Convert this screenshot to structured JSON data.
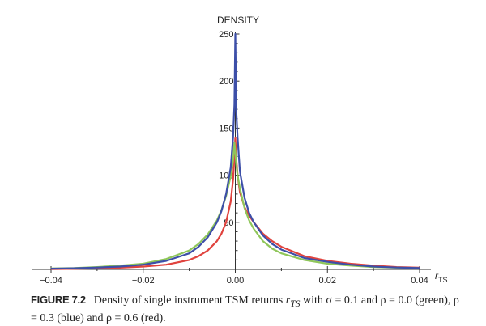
{
  "chart_data": {
    "type": "line",
    "title": "",
    "ylabel": "DENSITY",
    "xlabel_main": "r",
    "xlabel_sub": "TS",
    "xlim": [
      -0.04,
      0.04
    ],
    "ylim": [
      0,
      250
    ],
    "xticks": [
      -0.04,
      -0.02,
      0.0,
      0.02,
      0.04
    ],
    "xtick_labels": [
      "-0.04",
      "-0.02",
      "0.00",
      "0.02",
      "0.04"
    ],
    "yticks": [
      50,
      100,
      150,
      200,
      250
    ],
    "ytick_labels": [
      "50",
      "100",
      "150",
      "200",
      "250"
    ],
    "grid": false,
    "series": [
      {
        "name": "ρ = 0.0 (green)",
        "color": "#8fc65a",
        "x": [
          -0.04,
          -0.035,
          -0.03,
          -0.025,
          -0.02,
          -0.015,
          -0.01,
          -0.008,
          -0.006,
          -0.004,
          -0.003,
          -0.002,
          -0.001,
          -0.0005,
          -0.0002,
          0,
          0.0002,
          0.0005,
          0.001,
          0.002,
          0.003,
          0.004,
          0.006,
          0.008,
          0.01,
          0.015,
          0.02,
          0.025,
          0.03,
          0.035,
          0.04
        ],
        "values": [
          1,
          1.5,
          2.5,
          4,
          6,
          11,
          20,
          27,
          37,
          52,
          63,
          78,
          99,
          115,
          135,
          125,
          112,
          100,
          86,
          65,
          52,
          43,
          30,
          22,
          17,
          10,
          6,
          4,
          2.5,
          1.8,
          1.2
        ]
      },
      {
        "name": "ρ = 0.3 (blue)",
        "color": "#3d4fa8",
        "x": [
          -0.04,
          -0.035,
          -0.03,
          -0.025,
          -0.02,
          -0.015,
          -0.01,
          -0.008,
          -0.006,
          -0.004,
          -0.003,
          -0.002,
          -0.001,
          -0.0005,
          -0.0002,
          0,
          0.0002,
          0.0005,
          0.001,
          0.002,
          0.003,
          0.004,
          0.006,
          0.008,
          0.01,
          0.015,
          0.02,
          0.025,
          0.03,
          0.035,
          0.04
        ],
        "values": [
          0.8,
          1.2,
          2,
          3,
          5,
          9,
          17,
          24,
          34,
          50,
          62,
          80,
          108,
          140,
          175,
          250,
          170,
          140,
          104,
          76,
          60,
          50,
          36,
          27,
          21,
          12,
          8,
          5,
          3,
          2,
          1.5
        ]
      },
      {
        "name": "ρ = 0.6 (red)",
        "color": "#e0433e",
        "x": [
          -0.04,
          -0.035,
          -0.03,
          -0.025,
          -0.02,
          -0.015,
          -0.01,
          -0.008,
          -0.006,
          -0.004,
          -0.003,
          -0.002,
          -0.001,
          -0.0005,
          -0.0002,
          0,
          0.0002,
          0.0005,
          0.001,
          0.002,
          0.003,
          0.004,
          0.006,
          0.008,
          0.01,
          0.015,
          0.02,
          0.025,
          0.03,
          0.035,
          0.04
        ],
        "values": [
          0.3,
          0.6,
          1,
          1.8,
          3,
          5,
          10,
          14,
          20,
          30,
          38,
          50,
          72,
          95,
          120,
          140,
          118,
          100,
          82,
          66,
          57,
          50,
          38,
          30,
          24,
          14,
          9,
          6,
          4,
          2.5,
          1.8
        ]
      }
    ]
  },
  "caption": {
    "figure_label": "FIGURE 7.2",
    "text_1": "Density of single instrument TSM returns ",
    "r_main": "r",
    "r_sub": "TS",
    "text_2": " with σ = 0.1 and ρ = 0.0 (green), ρ = 0.3 (blue) and ρ = 0.6 (red)."
  }
}
